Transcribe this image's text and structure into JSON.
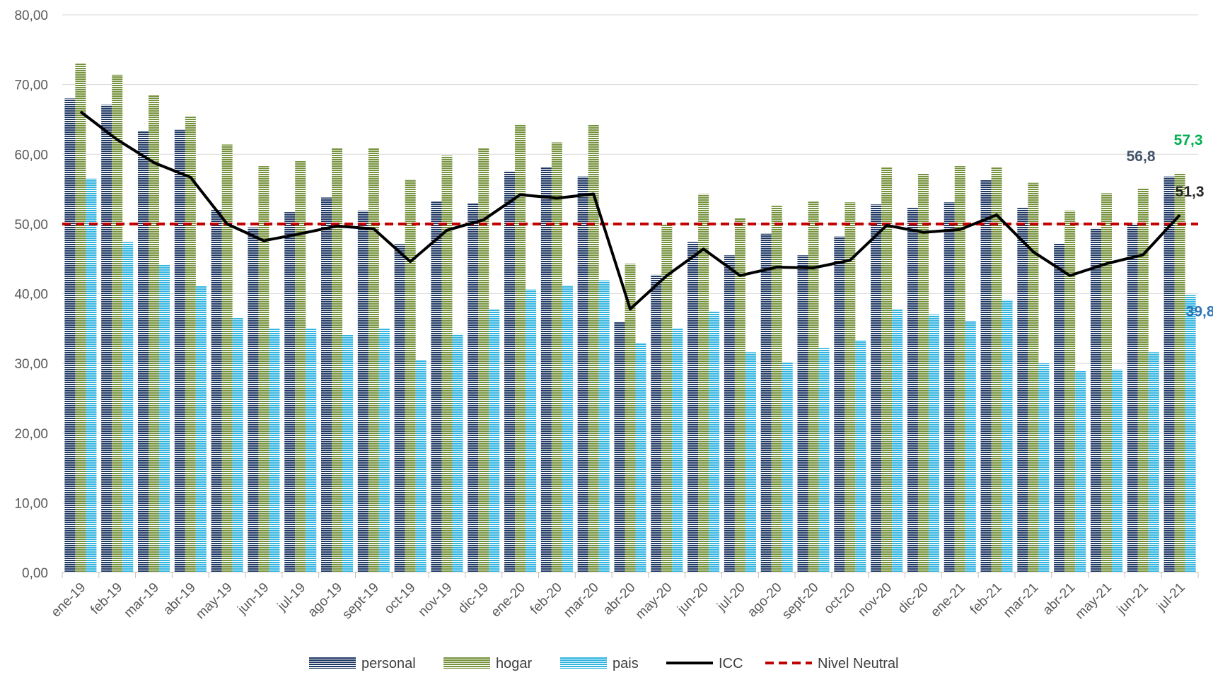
{
  "chart_data": {
    "type": "bar_line",
    "categories": [
      "ene-19",
      "feb-19",
      "mar-19",
      "abr-19",
      "may-19",
      "jun-19",
      "jul-19",
      "ago-19",
      "sept-19",
      "oct-19",
      "nov-19",
      "dic-19",
      "ene-20",
      "feb-20",
      "mar-20",
      "abr-20",
      "may-20",
      "jun-20",
      "jul-20",
      "ago-20",
      "sept-20",
      "oct-20",
      "nov-20",
      "dic-20",
      "ene-21",
      "feb-21",
      "mar-21",
      "abr-21",
      "may-21",
      "jun-21",
      "jul-21"
    ],
    "series": [
      {
        "name": "personal",
        "type": "bar",
        "color": "#1f3864",
        "label_color": "#44546a",
        "values": [
          68.0,
          67.1,
          63.3,
          63.5,
          52.0,
          49.5,
          51.7,
          53.8,
          51.9,
          47.1,
          53.2,
          53.0,
          57.6,
          58.2,
          56.8,
          36.0,
          42.7,
          47.4,
          45.5,
          48.6,
          45.5,
          48.2,
          52.8,
          52.3,
          53.1,
          56.3,
          52.3,
          47.2,
          49.4,
          50.0,
          56.8
        ],
        "value_labels": [
          null,
          null,
          null,
          null,
          null,
          null,
          null,
          null,
          null,
          null,
          null,
          null,
          null,
          null,
          null,
          null,
          null,
          null,
          null,
          null,
          null,
          null,
          null,
          null,
          null,
          null,
          null,
          null,
          null,
          null,
          "56,8"
        ]
      },
      {
        "name": "hogar",
        "type": "bar",
        "color": "#76923c",
        "label_color": "#00b050",
        "values": [
          73.1,
          71.4,
          68.5,
          65.4,
          61.4,
          58.3,
          59.1,
          60.9,
          60.9,
          56.4,
          59.8,
          60.9,
          64.3,
          61.7,
          64.2,
          44.3,
          49.9,
          54.3,
          50.8,
          52.6,
          53.2,
          53.1,
          58.1,
          57.2,
          58.3,
          58.1,
          55.9,
          51.9,
          54.4,
          55.1,
          57.3
        ],
        "value_labels": [
          null,
          null,
          null,
          null,
          null,
          null,
          null,
          null,
          null,
          null,
          null,
          null,
          null,
          null,
          null,
          null,
          null,
          null,
          null,
          null,
          null,
          null,
          null,
          null,
          null,
          null,
          null,
          null,
          null,
          null,
          "57,3"
        ]
      },
      {
        "name": "pais",
        "type": "bar",
        "color": "#31b4e0",
        "label_color": "#2e75b6",
        "values": [
          56.5,
          47.4,
          44.2,
          41.1,
          36.5,
          35.0,
          35.0,
          34.1,
          35.0,
          30.5,
          34.2,
          37.8,
          40.6,
          41.2,
          41.9,
          32.9,
          35.0,
          37.4,
          31.6,
          30.1,
          32.2,
          33.3,
          37.8,
          37.0,
          36.1,
          39.1,
          30.0,
          28.9,
          29.1,
          31.6,
          39.8
        ],
        "value_labels": [
          null,
          null,
          null,
          null,
          null,
          null,
          null,
          null,
          null,
          null,
          null,
          null,
          null,
          null,
          null,
          null,
          null,
          null,
          null,
          null,
          null,
          null,
          null,
          null,
          null,
          null,
          null,
          null,
          null,
          null,
          "39,8"
        ]
      },
      {
        "name": "ICC",
        "type": "line",
        "color": "#000000",
        "label_color": "#262626",
        "values": [
          66.1,
          62.1,
          58.8,
          56.7,
          50.0,
          47.6,
          48.6,
          49.7,
          49.3,
          44.6,
          49.1,
          50.6,
          54.2,
          53.7,
          54.3,
          37.8,
          42.6,
          46.4,
          42.6,
          43.8,
          43.7,
          44.8,
          49.8,
          48.8,
          49.2,
          51.3,
          46.0,
          42.6,
          44.3,
          45.6,
          51.3
        ],
        "value_labels": [
          null,
          null,
          null,
          null,
          null,
          null,
          null,
          null,
          null,
          null,
          null,
          null,
          null,
          null,
          null,
          null,
          null,
          null,
          null,
          null,
          null,
          null,
          null,
          null,
          null,
          null,
          null,
          null,
          null,
          null,
          "51,3"
        ]
      }
    ],
    "reference_lines": [
      {
        "name": "Nivel Neutral",
        "value": 50,
        "color": "#c00000",
        "dashed": true
      }
    ],
    "ylim": [
      0,
      80
    ],
    "yticks": [
      {
        "value": 0,
        "label": "0,00"
      },
      {
        "value": 10,
        "label": "10,00"
      },
      {
        "value": 20,
        "label": "20,00"
      },
      {
        "value": 30,
        "label": "30,00"
      },
      {
        "value": 40,
        "label": "40,00"
      },
      {
        "value": 50,
        "label": "50,00"
      },
      {
        "value": 60,
        "label": "60,00"
      },
      {
        "value": 70,
        "label": "70,00"
      },
      {
        "value": 80,
        "label": "80,00"
      }
    ],
    "grid": true,
    "legend": "bottom"
  }
}
